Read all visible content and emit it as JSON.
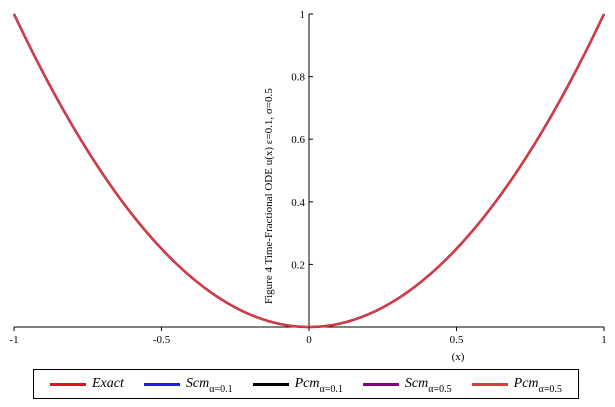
{
  "chart_data": {
    "type": "line",
    "title": "Figure 4  Time-Fractional ODE  u(x)  ε=0.1, σ=0.5",
    "xlabel": "(x)",
    "ylabel": "",
    "xlim": [
      -1,
      1
    ],
    "ylim": [
      0,
      1
    ],
    "x_ticks": [
      "-1",
      "-0.5",
      "0",
      "0.5",
      "1"
    ],
    "y_ticks": [
      "0.2",
      "0.4",
      "0.6",
      "0.8",
      "1"
    ],
    "grid": false,
    "x": [
      -1,
      -0.75,
      -0.5,
      -0.25,
      0,
      0.25,
      0.5,
      0.75,
      1
    ],
    "series": [
      {
        "name": "Exact",
        "sub": "",
        "color": "#e8101a",
        "values": [
          1,
          0.5625,
          0.25,
          0.0625,
          0,
          0.0625,
          0.25,
          0.5625,
          1
        ]
      },
      {
        "name": "Scm",
        "sub": "α=0.1",
        "color": "#1a1aff",
        "values": [
          1,
          0.5625,
          0.25,
          0.0625,
          0,
          0.0625,
          0.25,
          0.5625,
          1
        ]
      },
      {
        "name": "Pcm",
        "sub": "α=0.1",
        "color": "#000000",
        "values": [
          1,
          0.5625,
          0.25,
          0.0625,
          0,
          0.0625,
          0.25,
          0.5625,
          1
        ]
      },
      {
        "name": "Scm",
        "sub": "α=0.5",
        "color": "#800080",
        "values": [
          1,
          0.5625,
          0.25,
          0.0625,
          0,
          0.0625,
          0.25,
          0.5625,
          1
        ]
      },
      {
        "name": "Pcm",
        "sub": "α=0.5",
        "color": "#d84040",
        "values": [
          1,
          0.5625,
          0.25,
          0.0625,
          0,
          0.0625,
          0.25,
          0.5625,
          1
        ]
      }
    ],
    "legend_position": "bottom"
  }
}
